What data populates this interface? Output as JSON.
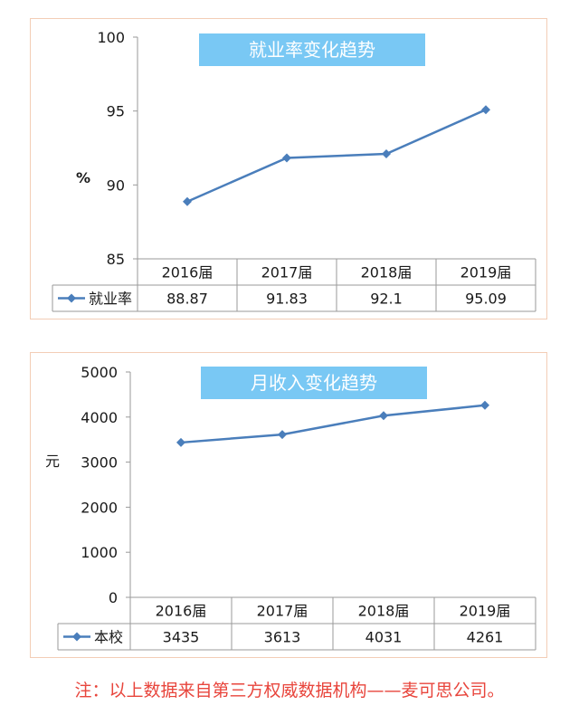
{
  "chart_data": [
    {
      "type": "line",
      "title": "就业率变化趋势",
      "ylabel": "%",
      "categories": [
        "2016届",
        "2017届",
        "2018届",
        "2019届"
      ],
      "series": [
        {
          "name": "就业率",
          "values": [
            88.87,
            91.83,
            92.1,
            95.09
          ],
          "labels": [
            "88.87",
            "91.83",
            "92.1",
            "95.09"
          ]
        }
      ],
      "ylim": [
        85,
        100
      ],
      "yticks": [
        85,
        90,
        95,
        100
      ],
      "grid": false,
      "legend": "data-table",
      "color": "#4a7ebb"
    },
    {
      "type": "line",
      "title": "月收入变化趋势",
      "ylabel": "元",
      "categories": [
        "2016届",
        "2017届",
        "2018届",
        "2019届"
      ],
      "series": [
        {
          "name": "本校",
          "values": [
            3435,
            3613,
            4031,
            4261
          ],
          "labels": [
            "3435",
            "3613",
            "4031",
            "4261"
          ]
        }
      ],
      "ylim": [
        0,
        5000
      ],
      "yticks": [
        0,
        1000,
        2000,
        3000,
        4000,
        5000
      ],
      "grid": false,
      "legend": "data-table",
      "color": "#4a7ebb"
    }
  ],
  "footnote": "注：以上数据来自第三方权威数据机构——麦可思公司。"
}
